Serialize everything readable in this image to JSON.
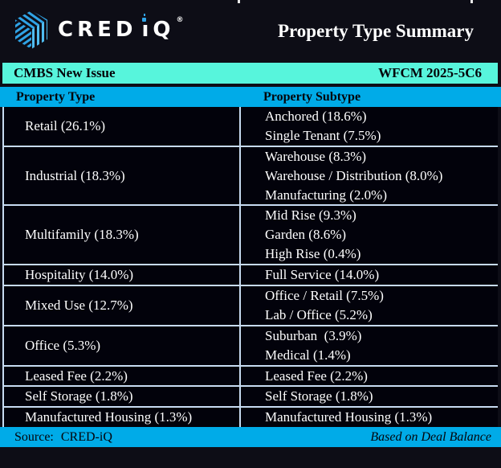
{
  "header": {
    "title": "Property Type Summary",
    "logo": {
      "brand": "CRED",
      "i_letter": "ı",
      "q_letter": "Q",
      "registered": "®",
      "icon": "striped-hexagon-cube"
    }
  },
  "deal_bar": {
    "left": "CMBS New Issue",
    "right": "WFCM 2025-5C6"
  },
  "table": {
    "columns": [
      "Property Type",
      "Property Subtype"
    ],
    "rows": [
      {
        "type": "Retail (26.1%)",
        "subtypes": [
          "Anchored (18.6%)",
          "Single Tenant (7.5%)"
        ]
      },
      {
        "type": "Industrial (18.3%)",
        "subtypes": [
          "Warehouse (8.3%)",
          "Warehouse / Distribution (8.0%)",
          "Manufacturing (2.0%)"
        ]
      },
      {
        "type": "Multifamily (18.3%)",
        "subtypes": [
          "Mid Rise (9.3%)",
          "Garden (8.6%)",
          "High Rise (0.4%)"
        ]
      },
      {
        "type": "Hospitality (14.0%)",
        "subtypes": [
          "Full Service (14.0%)"
        ]
      },
      {
        "type": "Mixed Use (12.7%)",
        "subtypes": [
          "Office / Retail (7.5%)",
          "Lab / Office (5.2%)"
        ]
      },
      {
        "type": "Office (5.3%)",
        "subtypes": [
          "Suburban  (3.9%)",
          "Medical (1.4%)"
        ]
      },
      {
        "type": "Leased Fee (2.2%)",
        "subtypes": [
          "Leased Fee (2.2%)"
        ]
      },
      {
        "type": "Self Storage (1.8%)",
        "subtypes": [
          "Self Storage (1.8%)"
        ]
      },
      {
        "type": "Manufactured Housing (1.3%)",
        "subtypes": [
          "Manufactured Housing (1.3%)"
        ]
      }
    ]
  },
  "footer": {
    "source_label": "Source:",
    "source_value": "CRED-iQ",
    "note": "Based on Deal Balance"
  },
  "colors": {
    "teal": "#57F5DC",
    "bar-blue": "#00ABE8",
    "row-bg": "#02020B",
    "page-bg": "#0D0D16",
    "divider": "#C7DBF1",
    "text-light": "#FFFFFF",
    "text-dark": "#04040A",
    "logo-blue": "#2FA3E6"
  },
  "chart_data": {
    "type": "table",
    "title": "Property Type Summary",
    "deal": "WFCM 2025-5C6",
    "category": "CMBS New Issue",
    "basis": "Based on Deal Balance",
    "columns": [
      "Property Type",
      "Property Subtype"
    ],
    "property_types": [
      {
        "name": "Retail",
        "pct": 26.1,
        "subtypes": [
          {
            "name": "Anchored",
            "pct": 18.6
          },
          {
            "name": "Single Tenant",
            "pct": 7.5
          }
        ]
      },
      {
        "name": "Industrial",
        "pct": 18.3,
        "subtypes": [
          {
            "name": "Warehouse",
            "pct": 8.3
          },
          {
            "name": "Warehouse / Distribution",
            "pct": 8.0
          },
          {
            "name": "Manufacturing",
            "pct": 2.0
          }
        ]
      },
      {
        "name": "Multifamily",
        "pct": 18.3,
        "subtypes": [
          {
            "name": "Mid Rise",
            "pct": 9.3
          },
          {
            "name": "Garden",
            "pct": 8.6
          },
          {
            "name": "High Rise",
            "pct": 0.4
          }
        ]
      },
      {
        "name": "Hospitality",
        "pct": 14.0,
        "subtypes": [
          {
            "name": "Full Service",
            "pct": 14.0
          }
        ]
      },
      {
        "name": "Mixed Use",
        "pct": 12.7,
        "subtypes": [
          {
            "name": "Office / Retail",
            "pct": 7.5
          },
          {
            "name": "Lab / Office",
            "pct": 5.2
          }
        ]
      },
      {
        "name": "Office",
        "pct": 5.3,
        "subtypes": [
          {
            "name": "Suburban",
            "pct": 3.9
          },
          {
            "name": "Medical",
            "pct": 1.4
          }
        ]
      },
      {
        "name": "Leased Fee",
        "pct": 2.2,
        "subtypes": [
          {
            "name": "Leased Fee",
            "pct": 2.2
          }
        ]
      },
      {
        "name": "Self Storage",
        "pct": 1.8,
        "subtypes": [
          {
            "name": "Self Storage",
            "pct": 1.8
          }
        ]
      },
      {
        "name": "Manufactured Housing",
        "pct": 1.3,
        "subtypes": [
          {
            "name": "Manufactured Housing",
            "pct": 1.3
          }
        ]
      }
    ]
  }
}
